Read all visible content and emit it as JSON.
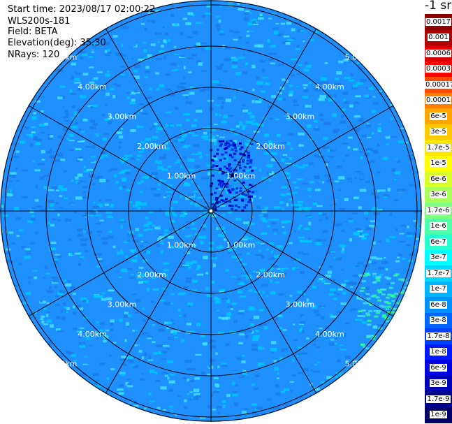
{
  "info": {
    "start_time": "Start time: 2023/08/17 02:00:22",
    "instrument": "WLS200s-181",
    "field": "Field: BETA",
    "elevation": "Elevation(deg): 35.30",
    "nrays": "NRays: 120"
  },
  "rings": {
    "labels": [
      "1.00km",
      "2.00km",
      "3.00km",
      "4.00km",
      "5.00km"
    ]
  },
  "colorbar": {
    "title": "-1 sr",
    "labels": [
      "0.0017",
      "0.001",
      "0.0006",
      "0.0003",
      "0.00017",
      "0.0001",
      "6e-5",
      "3e-5",
      "1.7e-5",
      "1e-5",
      "6e-6",
      "3e-6",
      "1.7e-6",
      "1e-6",
      "6e-7",
      "3e-7",
      "1.7e-7",
      "1e-7",
      "6e-8",
      "3e-8",
      "1.7e-8",
      "1e-8",
      "6e-9",
      "3e-9",
      "1.7e-9",
      "1e-9"
    ],
    "colors": [
      "#8b0000",
      "#b00000",
      "#d80000",
      "#ff0000",
      "#ff4a00",
      "#ff7f00",
      "#ffa500",
      "#ffc800",
      "#ffe600",
      "#ffff00",
      "#d8ff28",
      "#a8ff58",
      "#7fff80",
      "#50ffaa",
      "#28ffd0",
      "#00ffff",
      "#00d8ff",
      "#00b4ff",
      "#0090ff",
      "#0064ff",
      "#0040ff",
      "#0018ff",
      "#0000e0",
      "#0000b8",
      "#000090",
      "#000068"
    ]
  },
  "map_colors": {
    "base": "#1e90ff",
    "outer": "#1a7ce8",
    "cyan": "#00c8ff",
    "light": "#40e0ff",
    "deep": "#0030e0",
    "green": "#30ff90"
  }
}
